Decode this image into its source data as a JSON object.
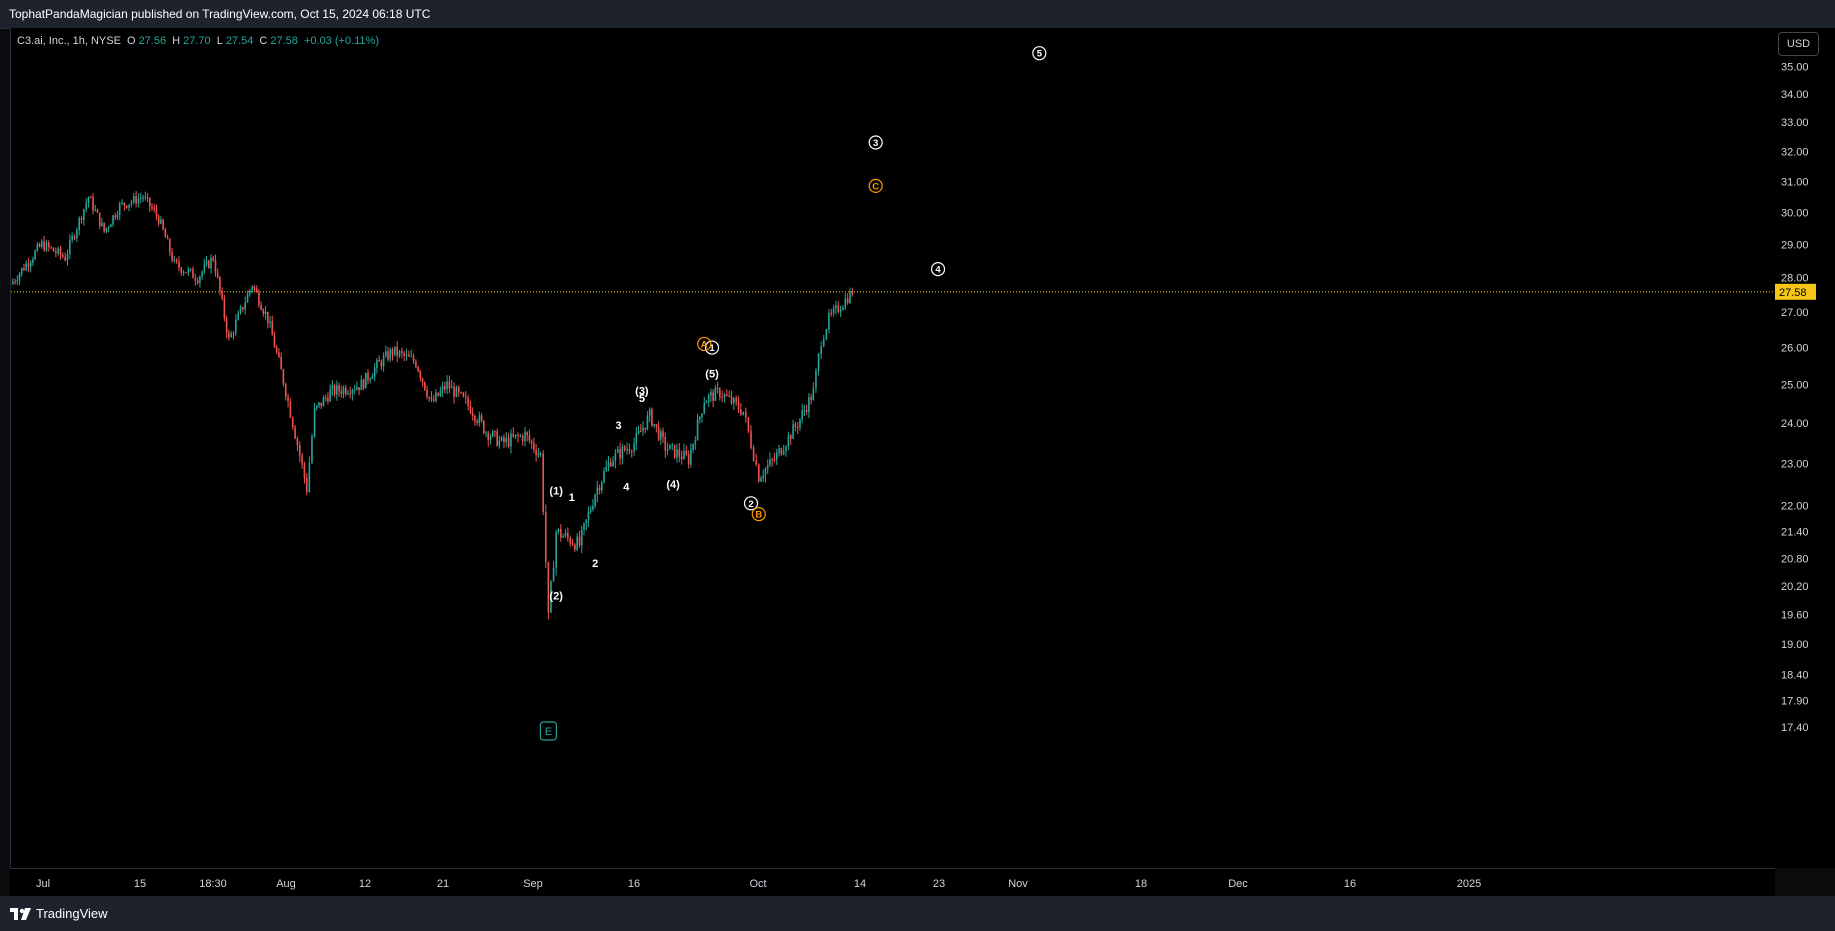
{
  "header": {
    "publish_line": "TophatPandaMagician published on TradingView.com, Oct 15, 2024 06:18 UTC"
  },
  "legend": {
    "symbol": "C3.ai, Inc., 1h, NYSE",
    "o_label": "O",
    "o_value": "27.56",
    "h_label": "H",
    "h_value": "27.70",
    "l_label": "L",
    "l_value": "27.54",
    "c_label": "C",
    "c_value": "27.58",
    "change": "+0.03 (+0.11%)"
  },
  "currency": "USD",
  "footer": {
    "brand": "TradingView"
  },
  "colors": {
    "up": "#26a69a",
    "down": "#ef5350",
    "last_price": "#f5c518",
    "wave_white": "#ffffff",
    "wave_orange": "#ff9800"
  },
  "chart_data": {
    "type": "candlestick",
    "symbol": "C3.ai, Inc.",
    "interval": "1h",
    "exchange": "NYSE",
    "last_price": 27.58,
    "y_ticks": [
      "35.00",
      "34.00",
      "33.00",
      "32.00",
      "31.00",
      "30.00",
      "29.00",
      "28.00",
      "27.00",
      "26.00",
      "25.00",
      "24.00",
      "23.00",
      "22.00",
      "21.40",
      "20.80",
      "20.20",
      "19.60",
      "19.00",
      "18.40",
      "17.90",
      "17.40"
    ],
    "x_ticks": [
      "Jul",
      "15",
      "18:30",
      "Aug",
      "12",
      "21",
      "Sep",
      "16",
      "Oct",
      "14",
      "23",
      "Nov",
      "18",
      "Dec",
      "16",
      "2025"
    ],
    "price_path": [
      [
        "Jun 28",
        27.8
      ],
      [
        "Jul 2",
        29.0
      ],
      [
        "Jul 5",
        28.6
      ],
      [
        "Jul 8",
        30.5
      ],
      [
        "Jul 10",
        29.4
      ],
      [
        "Jul 12",
        30.2
      ],
      [
        "Jul 15",
        30.5
      ],
      [
        "Jul 17",
        29.8
      ],
      [
        "Jul 19",
        28.4
      ],
      [
        "Jul 22",
        28.0
      ],
      [
        "Jul 24",
        28.6
      ],
      [
        "Jul 26",
        26.2
      ],
      [
        "Jul 29",
        27.8
      ],
      [
        "Jul 31",
        26.8
      ],
      [
        "Aug 2",
        25.1
      ],
      [
        "Aug 5",
        22.4
      ],
      [
        "Aug 6",
        24.3
      ],
      [
        "Aug 8",
        24.8
      ],
      [
        "Aug 12",
        25.0
      ],
      [
        "Aug 14",
        25.5
      ],
      [
        "Aug 16",
        25.9
      ],
      [
        "Aug 19",
        25.6
      ],
      [
        "Aug 21",
        24.5
      ],
      [
        "Aug 23",
        25.0
      ],
      [
        "Aug 26",
        24.4
      ],
      [
        "Aug 28",
        23.8
      ],
      [
        "Aug 30",
        23.5
      ],
      [
        "Sep 2",
        23.7
      ],
      [
        "Sep 4",
        23.2
      ],
      [
        "Sep 5",
        19.5
      ],
      [
        "Sep 6",
        21.4
      ],
      [
        "Sep 9",
        21.1
      ],
      [
        "Sep 11",
        22.3
      ],
      [
        "Sep 13",
        23.1
      ],
      [
        "Sep 16",
        23.5
      ],
      [
        "Sep 18",
        24.2
      ],
      [
        "Sep 20",
        23.4
      ],
      [
        "Sep 23",
        23.1
      ],
      [
        "Sep 25",
        24.6
      ],
      [
        "Sep 27",
        24.8
      ],
      [
        "Sep 30",
        24.3
      ],
      [
        "Oct 1",
        23.5
      ],
      [
        "Oct 2",
        22.7
      ],
      [
        "Oct 4",
        23.1
      ],
      [
        "Oct 7",
        24.0
      ],
      [
        "Oct 9",
        24.8
      ],
      [
        "Oct 10",
        26.2
      ],
      [
        "Oct 11",
        26.8
      ],
      [
        "Oct 14",
        27.58
      ]
    ],
    "annotations": [
      {
        "label": "(1)",
        "color": "white",
        "circled": false,
        "date": "Sep 6",
        "price": 22.35
      },
      {
        "label": "(2)",
        "color": "white",
        "circled": false,
        "date": "Sep 6",
        "price": 20.0
      },
      {
        "label": "1",
        "color": "white",
        "circled": false,
        "date": "Sep 8",
        "price": 22.2
      },
      {
        "label": "2",
        "color": "white",
        "circled": false,
        "date": "Sep 11",
        "price": 20.7
      },
      {
        "label": "3",
        "color": "white",
        "circled": false,
        "date": "Sep 14",
        "price": 23.95
      },
      {
        "label": "4",
        "color": "white",
        "circled": false,
        "date": "Sep 15",
        "price": 22.45
      },
      {
        "label": "5",
        "color": "white",
        "circled": false,
        "date": "Sep 17",
        "price": 24.65
      },
      {
        "label": "(3)",
        "color": "white",
        "circled": false,
        "date": "Sep 17",
        "price": 24.85
      },
      {
        "label": "(4)",
        "color": "white",
        "circled": false,
        "date": "Sep 21",
        "price": 22.5
      },
      {
        "label": "(5)",
        "color": "white",
        "circled": false,
        "date": "Sep 26",
        "price": 25.3
      },
      {
        "label": "1",
        "color": "white",
        "circled": true,
        "date": "Sep 26",
        "price": 26.0
      },
      {
        "label": "A",
        "color": "orange",
        "circled": true,
        "date": "Sep 25",
        "price": 26.1
      },
      {
        "label": "2",
        "color": "white",
        "circled": true,
        "date": "Oct 1",
        "price": 22.05
      },
      {
        "label": "B",
        "color": "orange",
        "circled": true,
        "date": "Oct 2",
        "price": 21.8
      },
      {
        "label": "3",
        "color": "white",
        "circled": true,
        "date": "Oct 17",
        "price": 32.3
      },
      {
        "label": "C",
        "color": "orange",
        "circled": true,
        "date": "Oct 17",
        "price": 30.85
      },
      {
        "label": "4",
        "color": "white",
        "circled": true,
        "date": "Oct 25",
        "price": 28.25
      },
      {
        "label": "5",
        "color": "white",
        "circled": true,
        "date": "Nov 7",
        "price": 35.5
      },
      {
        "label": "E",
        "color": "teal",
        "circled": false,
        "boxed": true,
        "date": "Sep 5",
        "price": null
      }
    ]
  }
}
